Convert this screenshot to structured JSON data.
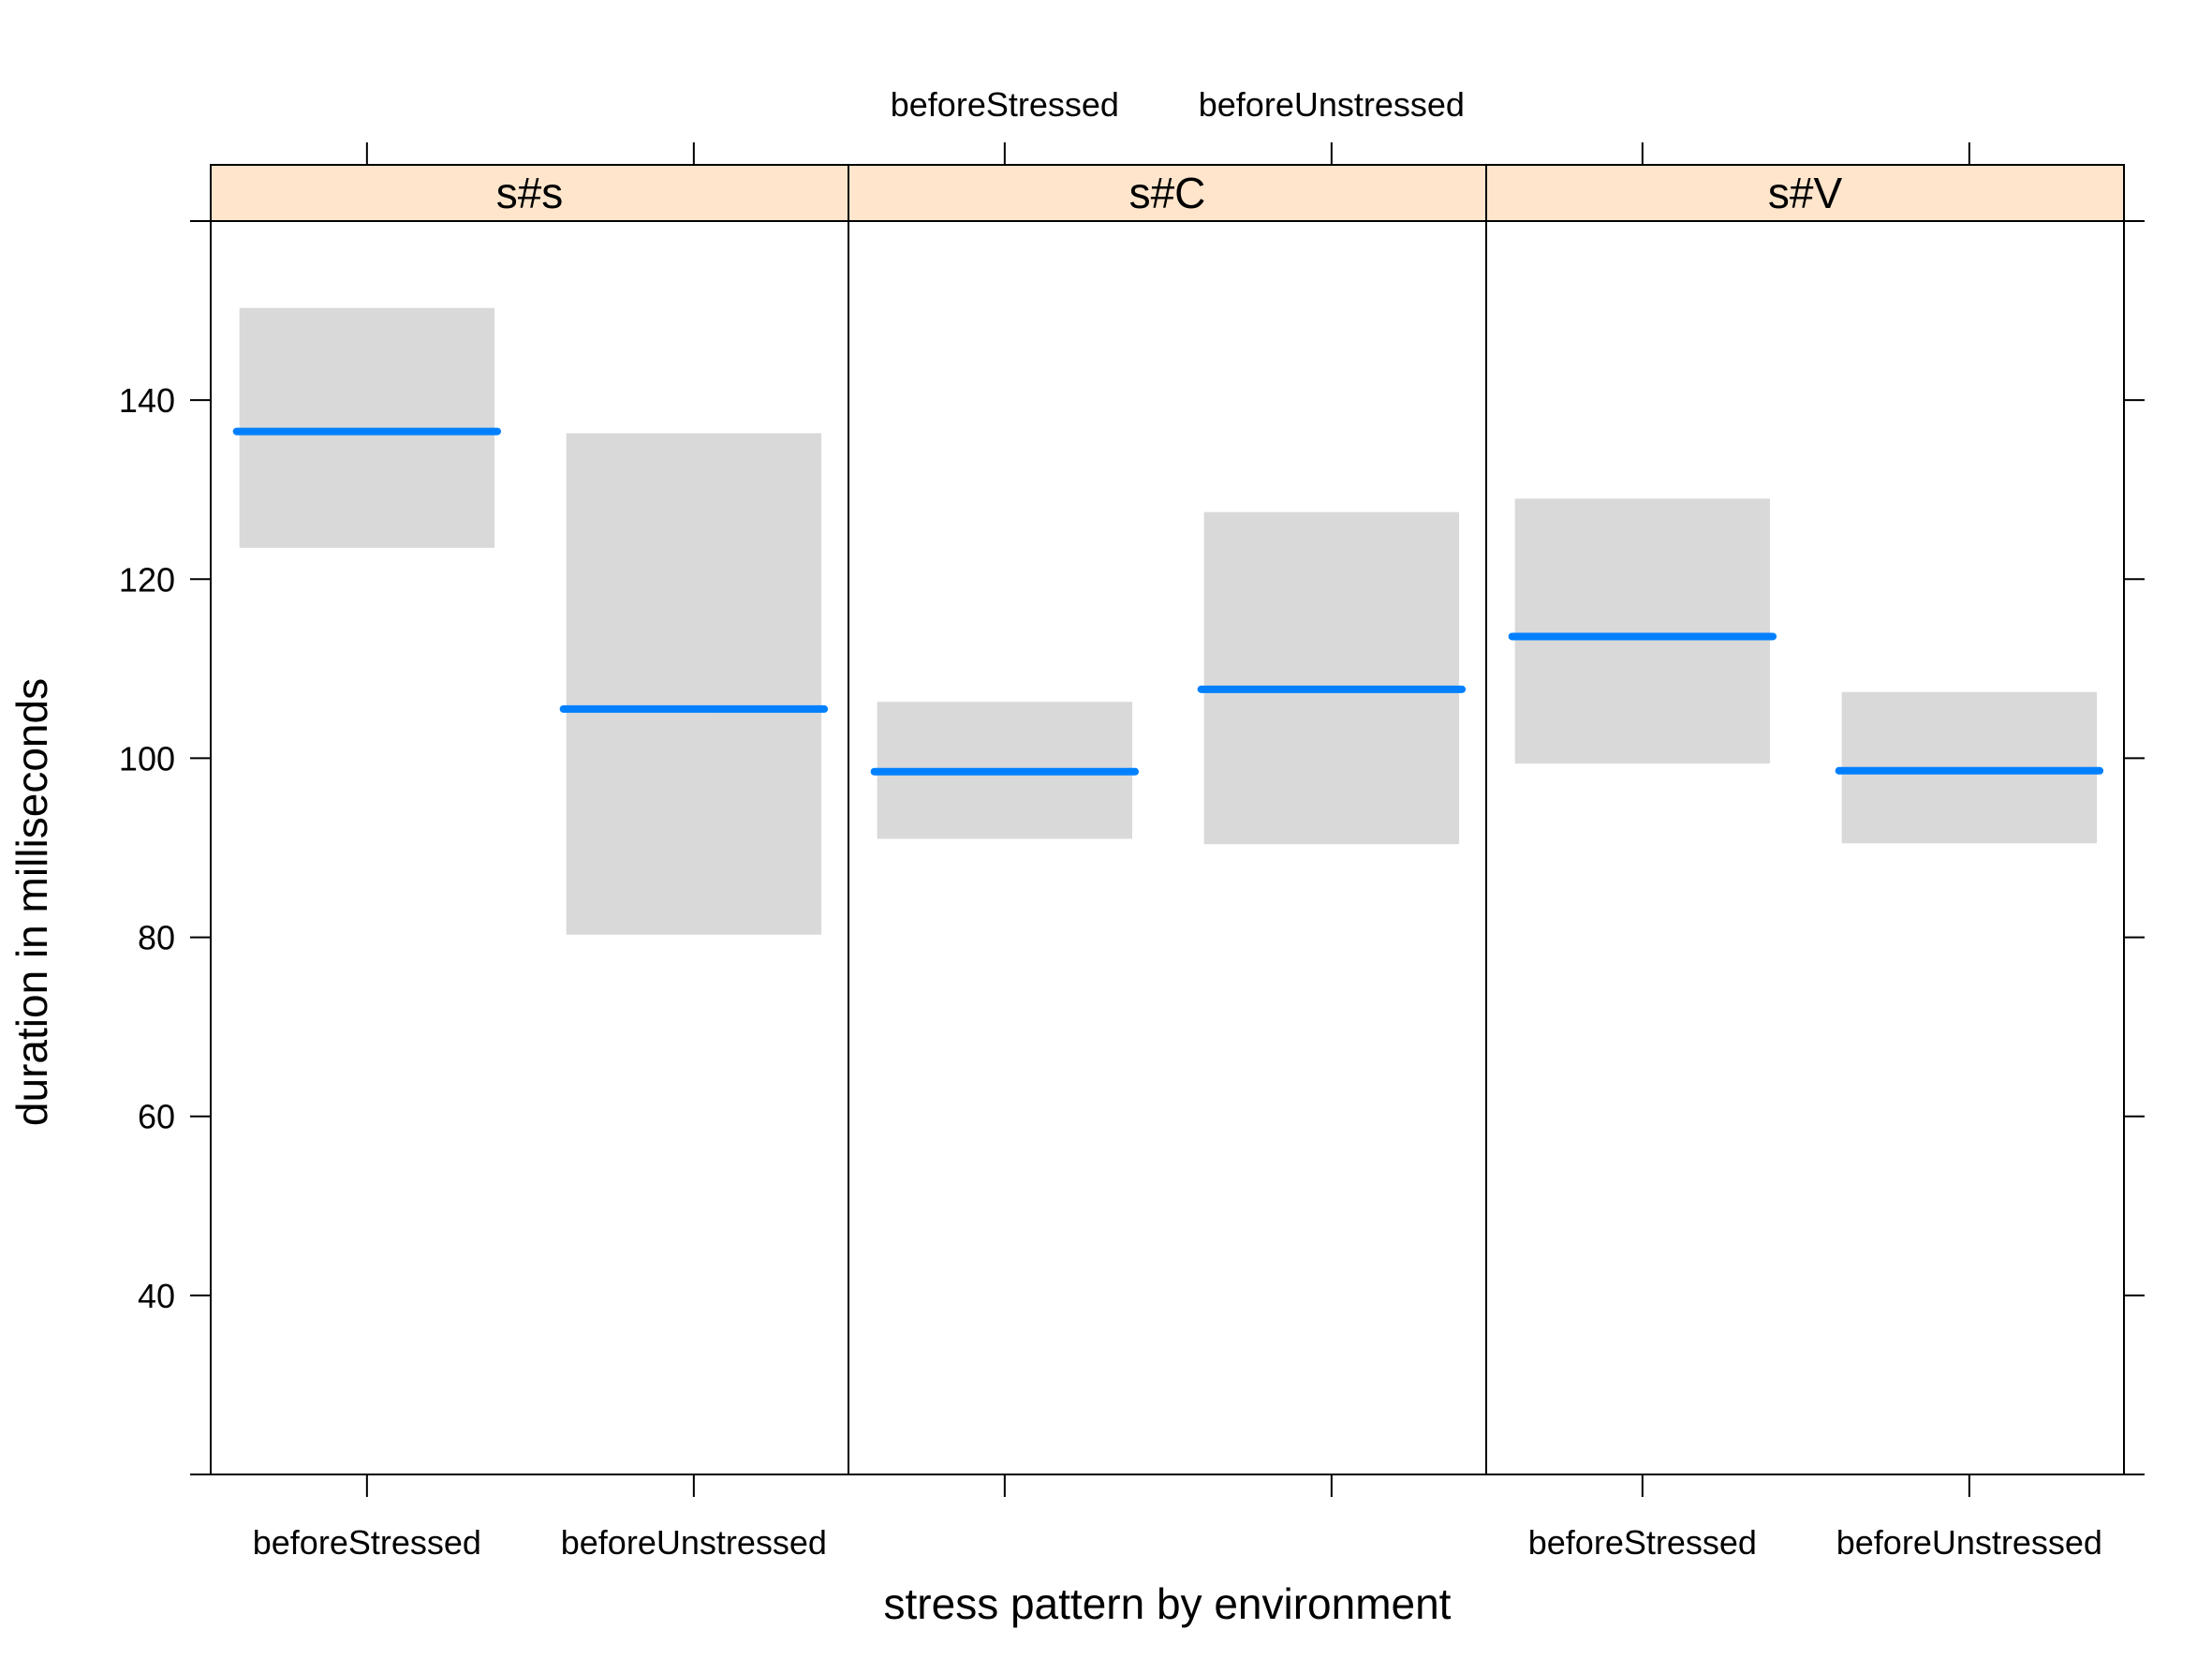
{
  "chart_data": {
    "type": "crossbar",
    "xlabel": "stress pattern by environment",
    "ylabel": "duration in milliseconds",
    "ylim": [
      20,
      160
    ],
    "yticks": [
      40,
      60,
      80,
      100,
      120,
      140
    ],
    "categories": [
      "beforeStressed",
      "beforeUnstressed"
    ],
    "grid": false,
    "colors": {
      "estimate": "#0080ff",
      "interval": "#d9d9d9",
      "strip": "#ffe5cc"
    },
    "panels": [
      {
        "label": "s#s",
        "bars": [
          {
            "category": "beforeStressed",
            "estimate": 136.5,
            "lower": 123.5,
            "upper": 150.3
          },
          {
            "category": "beforeUnstressed",
            "estimate": 105.5,
            "lower": 80.3,
            "upper": 136.3
          }
        ]
      },
      {
        "label": "s#C",
        "bars": [
          {
            "category": "beforeStressed",
            "estimate": 98.5,
            "lower": 91.0,
            "upper": 106.3
          },
          {
            "category": "beforeUnstressed",
            "estimate": 107.7,
            "lower": 90.4,
            "upper": 127.5
          }
        ]
      },
      {
        "label": "s#V",
        "bars": [
          {
            "category": "beforeStressed",
            "estimate": 113.6,
            "lower": 99.4,
            "upper": 129.0
          },
          {
            "category": "beforeUnstressed",
            "estimate": 98.6,
            "lower": 90.5,
            "upper": 107.4
          }
        ]
      }
    ]
  }
}
